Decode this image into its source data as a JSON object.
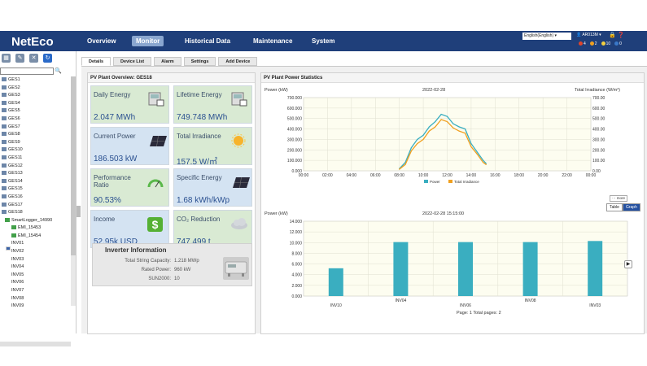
{
  "header": {
    "logo": "NetEco",
    "nav": [
      "Overview",
      "Monitor",
      "Historical Data",
      "Maintenance",
      "System"
    ],
    "active_nav": "Monitor",
    "language": "English(English)",
    "user": "AR013M"
  },
  "alarms": [
    {
      "count": "4",
      "color": "#e0452b"
    },
    {
      "count": "2",
      "color": "#f0a020"
    },
    {
      "count": "10",
      "color": "#f4d03f"
    },
    {
      "count": "0",
      "color": "#3a78c8"
    }
  ],
  "tree": {
    "items": [
      {
        "label": "GES1",
        "type": "site"
      },
      {
        "label": "GES2",
        "type": "site"
      },
      {
        "label": "GES3",
        "type": "site"
      },
      {
        "label": "GES4",
        "type": "site"
      },
      {
        "label": "GES5",
        "type": "site"
      },
      {
        "label": "GES6",
        "type": "site"
      },
      {
        "label": "GES7",
        "type": "site"
      },
      {
        "label": "GES8",
        "type": "site"
      },
      {
        "label": "GES9",
        "type": "site"
      },
      {
        "label": "GES10",
        "type": "site"
      },
      {
        "label": "GES11",
        "type": "site"
      },
      {
        "label": "GES12",
        "type": "site"
      },
      {
        "label": "GES13",
        "type": "site"
      },
      {
        "label": "GES14",
        "type": "site"
      },
      {
        "label": "GES15",
        "type": "site"
      },
      {
        "label": "GES16",
        "type": "site"
      },
      {
        "label": "GES17",
        "type": "site"
      },
      {
        "label": "GES18",
        "type": "site"
      },
      {
        "label": "SmartLogger_14990",
        "type": "logger"
      },
      {
        "label": "EMI_15453",
        "type": "emi"
      },
      {
        "label": "EMI_15454",
        "type": "emi"
      },
      {
        "label": "INV01",
        "type": "inv"
      },
      {
        "label": "INV02",
        "type": "inv"
      },
      {
        "label": "INV03",
        "type": "inv"
      },
      {
        "label": "INV04",
        "type": "inv"
      },
      {
        "label": "INV05",
        "type": "inv"
      },
      {
        "label": "INV06",
        "type": "inv"
      },
      {
        "label": "INV07",
        "type": "inv"
      },
      {
        "label": "INV08",
        "type": "inv"
      },
      {
        "label": "INV09",
        "type": "inv"
      }
    ]
  },
  "tabs": [
    "Details",
    "Device List",
    "Alarm",
    "Settings",
    "Add Device"
  ],
  "overview": {
    "title": "PV Plant Overview: GES18",
    "cards": [
      {
        "label": "Daily Energy",
        "value": "2.047 MWh",
        "icon": "meter-icon",
        "color": "g"
      },
      {
        "label": "Lifetime Energy",
        "value": "749.748 MWh",
        "icon": "meter-icon",
        "color": "g"
      },
      {
        "label": "Current Power",
        "value": "186.503 kW",
        "icon": "solar-panel-icon",
        "color": "b"
      },
      {
        "label": "Total Irradiance",
        "value": "157.5 W/㎡",
        "icon": "sun-icon",
        "color": "g"
      },
      {
        "label": "Performance Ratio",
        "value": "90.53%",
        "icon": "gauge-icon",
        "color": "g"
      },
      {
        "label": "Specific Energy",
        "value": "1.68 kWh/kWp",
        "icon": "solar-panel-icon",
        "color": "b"
      },
      {
        "label": "Income",
        "value": "52.95k USD",
        "icon": "dollar-icon",
        "color": "b"
      },
      {
        "label": "CO₂ Reduction",
        "value": "747.499 t",
        "icon": "cloud-icon",
        "color": "g"
      }
    ],
    "inverter": {
      "title": "Inverter Information",
      "rows": [
        {
          "label": "Total String Capacity:",
          "value": "1.218 MWp"
        },
        {
          "label": "Rated Power:",
          "value": "960 kW"
        },
        {
          "label": "SUN2000:",
          "value": "10"
        }
      ]
    }
  },
  "stats": {
    "title": "PV Plant Power Statistics",
    "chart1": {
      "left_label": "Power (kW)",
      "right_label": "Total Irradiance (W/m²)",
      "date": "2022-02-28",
      "more": "more"
    },
    "chart2": {
      "left_label": "Power (kW)",
      "datetime": "2022-02-28 15:15:00",
      "pager": "Page: 1    Total pages: 2",
      "toggle": [
        "Table",
        "Graph"
      ],
      "active_toggle": "Graph"
    }
  },
  "chart_data": [
    {
      "type": "line",
      "xlabel": "",
      "x": [
        "08:00",
        "08:30",
        "09:00",
        "09:30",
        "10:00",
        "10:30",
        "11:00",
        "11:30",
        "12:00",
        "12:30",
        "13:00",
        "13:30",
        "14:00",
        "14:30",
        "15:00",
        "15:15"
      ],
      "xticks": [
        "00:00",
        "02:00",
        "04:00",
        "06:00",
        "08:00",
        "10:00",
        "12:00",
        "14:00",
        "16:00",
        "18:00",
        "20:00",
        "22:00",
        "00:00"
      ],
      "series": [
        {
          "name": "Power",
          "color": "#3aaec0",
          "values": [
            20,
            80,
            220,
            300,
            340,
            420,
            470,
            540,
            520,
            450,
            420,
            400,
            260,
            180,
            100,
            70
          ]
        },
        {
          "name": "Total Irradiance",
          "color": "#f0a020",
          "values": [
            15,
            60,
            190,
            260,
            300,
            380,
            420,
            490,
            470,
            410,
            380,
            360,
            230,
            160,
            80,
            60
          ]
        }
      ],
      "ylim": [
        0,
        700
      ],
      "yticks": [
        "0.000",
        "100.000",
        "200.000",
        "300.000",
        "400.000",
        "500.000",
        "600.000",
        "700.000"
      ],
      "y2ticks": [
        "0.00",
        "100.00",
        "200.00",
        "300.00",
        "400.00",
        "500.00",
        "600.00",
        "700.00"
      ]
    },
    {
      "type": "bar",
      "categories": [
        "INV10",
        "INV04",
        "INV06",
        "INV08",
        "INV03"
      ],
      "values": [
        5200,
        10100,
        10100,
        10100,
        10300
      ],
      "ylim": [
        0,
        14000
      ],
      "yticks": [
        "0.000",
        "2.000",
        "4.000",
        "6.000",
        "8.000",
        "10.000",
        "12.000",
        "14.000"
      ],
      "color": "#3aaec0"
    }
  ]
}
